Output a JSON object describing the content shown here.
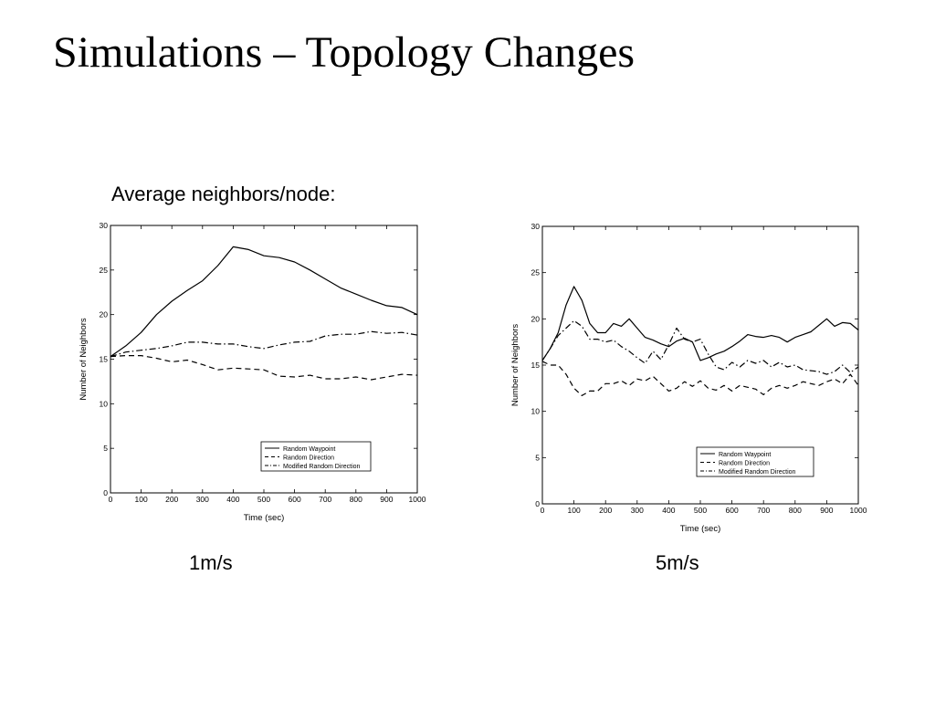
{
  "slide": {
    "title": "Simulations – Topology Changes",
    "subtitle": "Average neighbors/node:"
  },
  "captions": [
    "1m/s",
    "5m/s"
  ],
  "chart_data": [
    {
      "type": "line",
      "xlabel": "Time (sec)",
      "ylabel": "Number of Neighbors",
      "xlim": [
        0,
        1000
      ],
      "ylim": [
        0,
        30
      ],
      "xticks": [
        0,
        100,
        200,
        300,
        400,
        500,
        600,
        700,
        800,
        900,
        1000
      ],
      "yticks": [
        0,
        5,
        10,
        15,
        20,
        25,
        30
      ],
      "grid": false,
      "legend_position": "bottom-right",
      "series": [
        {
          "name": "Random Waypoint",
          "style": "solid",
          "x": [
            0,
            50,
            100,
            150,
            200,
            250,
            300,
            350,
            400,
            450,
            500,
            550,
            600,
            650,
            700,
            750,
            800,
            850,
            900,
            950,
            1000
          ],
          "y": [
            15.3,
            16.5,
            18.0,
            20.0,
            21.5,
            22.7,
            23.8,
            25.5,
            27.6,
            27.3,
            26.6,
            26.4,
            25.9,
            25.0,
            24.0,
            23.0,
            22.3,
            21.6,
            21.0,
            20.8,
            20.0
          ]
        },
        {
          "name": "Random Direction",
          "style": "dashed",
          "x": [
            0,
            50,
            100,
            150,
            200,
            250,
            300,
            350,
            400,
            450,
            500,
            550,
            600,
            650,
            700,
            750,
            800,
            850,
            900,
            950,
            1000
          ],
          "y": [
            15.3,
            15.4,
            15.4,
            15.1,
            14.7,
            14.9,
            14.4,
            13.8,
            14.0,
            13.9,
            13.8,
            13.1,
            13.0,
            13.2,
            12.8,
            12.8,
            13.0,
            12.7,
            13.0,
            13.3,
            13.2
          ]
        },
        {
          "name": "Modified Random Direction",
          "style": "dashdot",
          "x": [
            0,
            50,
            100,
            150,
            200,
            250,
            300,
            350,
            400,
            450,
            500,
            550,
            600,
            650,
            700,
            750,
            800,
            850,
            900,
            950,
            1000
          ],
          "y": [
            15.3,
            15.8,
            16.0,
            16.2,
            16.5,
            16.9,
            16.9,
            16.7,
            16.7,
            16.4,
            16.2,
            16.6,
            16.9,
            17.0,
            17.6,
            17.8,
            17.8,
            18.1,
            17.9,
            18.0,
            17.7
          ]
        }
      ]
    },
    {
      "type": "line",
      "xlabel": "Time (sec)",
      "ylabel": "Number of Neighbors",
      "xlim": [
        0,
        1000
      ],
      "ylim": [
        0,
        30
      ],
      "xticks": [
        0,
        100,
        200,
        300,
        400,
        500,
        600,
        700,
        800,
        900,
        1000
      ],
      "yticks": [
        0,
        5,
        10,
        15,
        20,
        25,
        30
      ],
      "grid": false,
      "legend_position": "bottom-right",
      "series": [
        {
          "name": "Random Waypoint",
          "style": "solid",
          "x": [
            0,
            25,
            50,
            75,
            100,
            125,
            150,
            175,
            200,
            225,
            250,
            275,
            300,
            325,
            350,
            375,
            400,
            425,
            450,
            475,
            500,
            525,
            550,
            575,
            600,
            625,
            650,
            675,
            700,
            725,
            750,
            775,
            800,
            825,
            850,
            875,
            900,
            925,
            950,
            975,
            1000
          ],
          "y": [
            15.5,
            16.8,
            18.5,
            21.5,
            23.5,
            22.0,
            19.5,
            18.5,
            18.5,
            19.5,
            19.2,
            20.0,
            19.0,
            18.0,
            17.7,
            17.3,
            17.0,
            17.6,
            17.9,
            17.5,
            15.5,
            15.8,
            16.2,
            16.5,
            17.0,
            17.6,
            18.3,
            18.1,
            18.0,
            18.2,
            18.0,
            17.5,
            18.0,
            18.3,
            18.6,
            19.3,
            20.0,
            19.2,
            19.6,
            19.5,
            18.8
          ]
        },
        {
          "name": "Random Direction",
          "style": "dashed",
          "x": [
            0,
            25,
            50,
            75,
            100,
            125,
            150,
            175,
            200,
            225,
            250,
            275,
            300,
            325,
            350,
            375,
            400,
            425,
            450,
            475,
            500,
            525,
            550,
            575,
            600,
            625,
            650,
            675,
            700,
            725,
            750,
            775,
            800,
            825,
            850,
            875,
            900,
            925,
            950,
            975,
            1000
          ],
          "y": [
            15.4,
            15.0,
            15.0,
            14.0,
            12.5,
            11.7,
            12.2,
            12.2,
            13.0,
            13.0,
            13.3,
            12.8,
            13.5,
            13.3,
            13.8,
            13.0,
            12.2,
            12.5,
            13.2,
            12.7,
            13.3,
            12.5,
            12.3,
            12.8,
            12.2,
            12.8,
            12.6,
            12.4,
            11.8,
            12.5,
            12.8,
            12.5,
            12.8,
            13.2,
            13.0,
            12.8,
            13.2,
            13.5,
            13.0,
            14.0,
            12.8
          ]
        },
        {
          "name": "Modified Random Direction",
          "style": "dashdot",
          "x": [
            0,
            25,
            50,
            75,
            100,
            125,
            150,
            175,
            200,
            225,
            250,
            275,
            300,
            325,
            350,
            375,
            400,
            425,
            450,
            475,
            500,
            525,
            550,
            575,
            600,
            625,
            650,
            675,
            700,
            725,
            750,
            775,
            800,
            825,
            850,
            875,
            900,
            925,
            950,
            975,
            1000
          ],
          "y": [
            15.5,
            16.8,
            18.2,
            19.0,
            19.8,
            19.2,
            17.8,
            17.8,
            17.5,
            17.7,
            17.0,
            16.5,
            15.8,
            15.2,
            16.5,
            15.6,
            17.2,
            19.0,
            17.8,
            17.5,
            17.8,
            16.2,
            14.8,
            14.5,
            15.3,
            14.8,
            15.5,
            15.2,
            15.5,
            14.8,
            15.3,
            14.8,
            15.0,
            14.5,
            14.4,
            14.3,
            14.0,
            14.3,
            15.0,
            14.2,
            14.8
          ]
        }
      ]
    }
  ]
}
